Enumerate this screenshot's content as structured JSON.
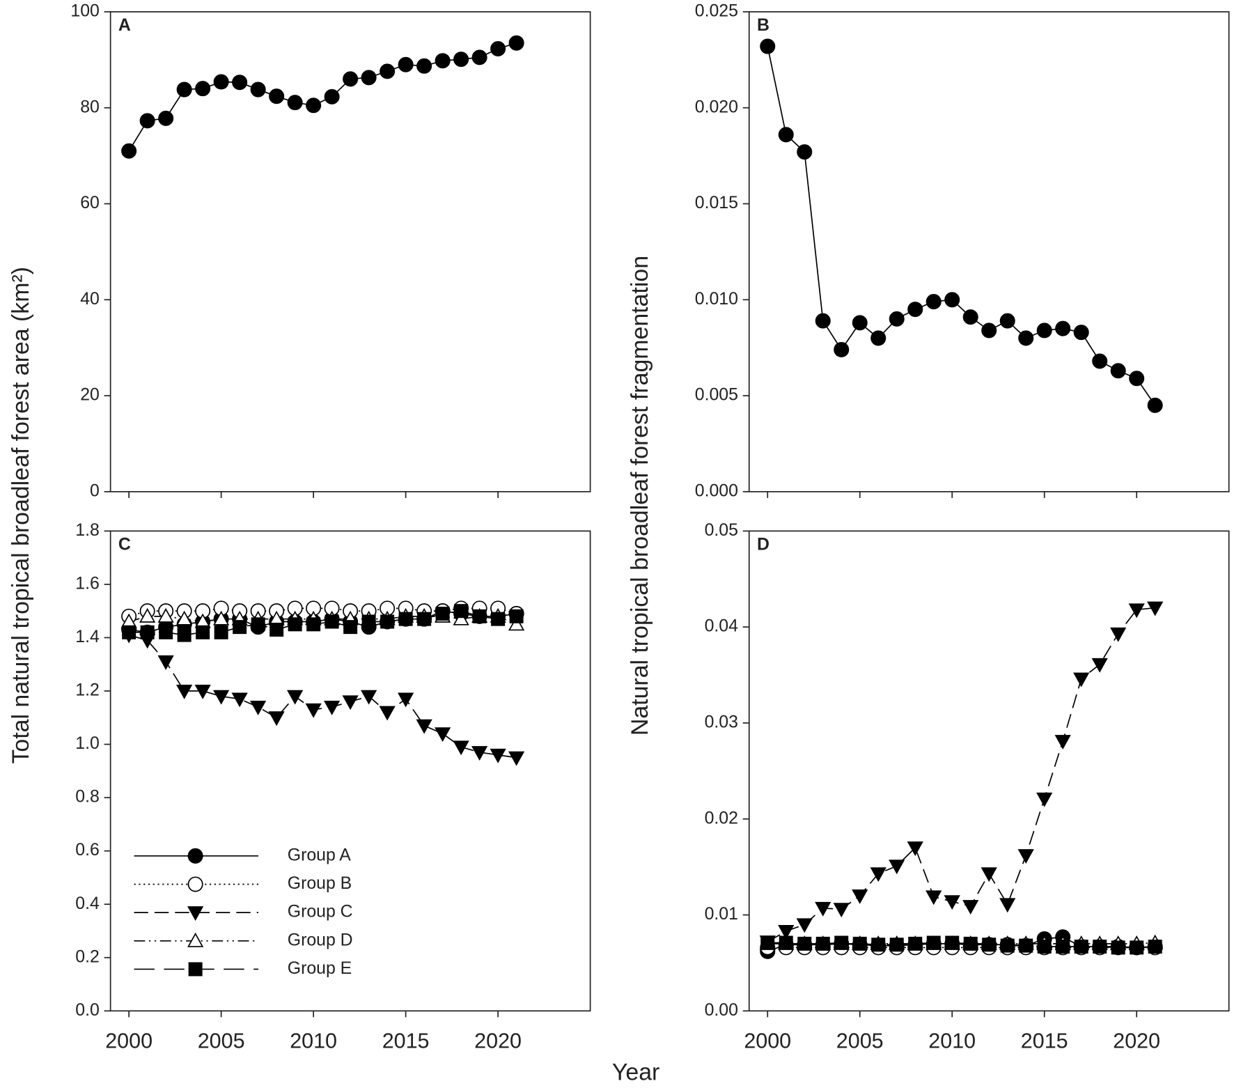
{
  "figure": {
    "xlabel": "Year"
  },
  "chart_data": [
    {
      "type": "line",
      "label": "A",
      "ylabel": "Total natural tropical broadleaf forest area (km²)",
      "x": [
        2000,
        2001,
        2002,
        2003,
        2004,
        2005,
        2006,
        2007,
        2008,
        2009,
        2010,
        2011,
        2012,
        2013,
        2014,
        2015,
        2016,
        2017,
        2018,
        2019,
        2020,
        2021
      ],
      "values": [
        71,
        77.3,
        77.8,
        83.8,
        84,
        85.4,
        85.3,
        83.8,
        82.4,
        81.1,
        80.5,
        82.3,
        86,
        86.3,
        87.6,
        89,
        88.7,
        89.8,
        90.1,
        90.5,
        92.3,
        93.5
      ],
      "marker": "circle",
      "filled": true,
      "color": "#000000",
      "xlim": [
        1999,
        2025
      ],
      "xticks": [
        2000,
        2005,
        2010,
        2015,
        2020
      ],
      "show_xtick_labels": false,
      "ylim": [
        0,
        100
      ],
      "yticks": [
        0,
        20,
        40,
        60,
        80,
        100
      ]
    },
    {
      "type": "line",
      "label": "B",
      "ylabel": "Natural tropical broadleaf forest fragmentation",
      "x": [
        2000,
        2001,
        2002,
        2003,
        2004,
        2005,
        2006,
        2007,
        2008,
        2009,
        2010,
        2011,
        2012,
        2013,
        2014,
        2015,
        2016,
        2017,
        2018,
        2019,
        2020,
        2021
      ],
      "values": [
        0.0232,
        0.0186,
        0.0177,
        0.0089,
        0.0074,
        0.0088,
        0.008,
        0.009,
        0.0095,
        0.0099,
        0.01,
        0.0091,
        0.0084,
        0.0089,
        0.008,
        0.0084,
        0.0085,
        0.0083,
        0.0068,
        0.0063,
        0.0059,
        0.0045
      ],
      "marker": "circle",
      "filled": true,
      "color": "#000000",
      "xlim": [
        1999,
        2025
      ],
      "xticks": [
        2000,
        2005,
        2010,
        2015,
        2020
      ],
      "show_xtick_labels": false,
      "ylim": [
        0,
        0.025
      ],
      "yticks": [
        {
          "value": 0,
          "label": "0.000"
        },
        0.005,
        {
          "value": 0.01,
          "label": "0.010"
        },
        0.015,
        {
          "value": 0.02,
          "label": "0.020"
        },
        0.025
      ]
    },
    {
      "type": "line",
      "label": "C",
      "legend": "lower left",
      "x": [
        2000,
        2001,
        2002,
        2003,
        2004,
        2005,
        2006,
        2007,
        2008,
        2009,
        2010,
        2011,
        2012,
        2013,
        2014,
        2015,
        2016,
        2017,
        2018,
        2019,
        2020,
        2021
      ],
      "series": [
        {
          "name": "Group A",
          "color": "#000000",
          "marker": "circle",
          "filled": true,
          "dash": "none",
          "values": [
            1.43,
            1.42,
            1.44,
            1.45,
            1.46,
            1.47,
            1.47,
            1.44,
            1.46,
            1.46,
            1.46,
            1.47,
            1.46,
            1.44,
            1.46,
            1.47,
            1.47,
            1.5,
            1.49,
            1.48,
            1.48,
            1.49
          ]
        },
        {
          "name": "Group B",
          "color": "#000000",
          "marker": "circle",
          "filled": false,
          "dash": "2,4",
          "values": [
            1.48,
            1.5,
            1.5,
            1.5,
            1.5,
            1.51,
            1.5,
            1.5,
            1.5,
            1.51,
            1.51,
            1.51,
            1.5,
            1.5,
            1.51,
            1.51,
            1.5,
            1.5,
            1.51,
            1.51,
            1.51,
            1.49
          ]
        },
        {
          "name": "Group C",
          "color": "#000000",
          "marker": "triangle-down",
          "filled": true,
          "dash": "18,8",
          "values": [
            1.41,
            1.39,
            1.31,
            1.2,
            1.2,
            1.18,
            1.17,
            1.14,
            1.1,
            1.18,
            1.13,
            1.14,
            1.16,
            1.18,
            1.12,
            1.17,
            1.07,
            1.04,
            0.99,
            0.97,
            0.96,
            0.95
          ]
        },
        {
          "name": "Group D",
          "color": "#000000",
          "marker": "triangle-up",
          "filled": false,
          "dash": "14,5,2,5,2,5",
          "values": [
            1.46,
            1.48,
            1.48,
            1.47,
            1.46,
            1.47,
            1.47,
            1.47,
            1.47,
            1.47,
            1.47,
            1.47,
            1.47,
            1.47,
            1.47,
            1.48,
            1.48,
            1.48,
            1.47,
            1.48,
            1.48,
            1.45
          ]
        },
        {
          "name": "Group E",
          "color": "#000000",
          "marker": "square",
          "filled": true,
          "dash": "26,12",
          "values": [
            1.42,
            1.42,
            1.42,
            1.41,
            1.42,
            1.42,
            1.44,
            1.45,
            1.43,
            1.45,
            1.45,
            1.46,
            1.44,
            1.46,
            1.46,
            1.47,
            1.47,
            1.49,
            1.5,
            1.48,
            1.47,
            1.48
          ]
        }
      ],
      "xlim": [
        1999,
        2025
      ],
      "xticks": [
        2000,
        2005,
        2010,
        2015,
        2020
      ],
      "show_xtick_labels": true,
      "ylim": [
        0,
        1.8
      ],
      "yticks": [
        {
          "value": 0,
          "label": "0.0"
        },
        0.2,
        0.4,
        0.6,
        0.8,
        {
          "value": 1,
          "label": "1.0"
        },
        1.2,
        1.4,
        1.6,
        1.8
      ]
    },
    {
      "type": "line",
      "label": "D",
      "x": [
        2000,
        2001,
        2002,
        2003,
        2004,
        2005,
        2006,
        2007,
        2008,
        2009,
        2010,
        2011,
        2012,
        2013,
        2014,
        2015,
        2016,
        2017,
        2018,
        2019,
        2020,
        2021
      ],
      "series": [
        {
          "name": "Group A",
          "color": "#000000",
          "marker": "circle",
          "filled": true,
          "dash": "none",
          "values": [
            0.0062,
            0.0069,
            0.0069,
            0.0069,
            0.007,
            0.0069,
            0.0068,
            0.0068,
            0.0069,
            0.007,
            0.007,
            0.0069,
            0.0069,
            0.0069,
            0.0068,
            0.0075,
            0.0077,
            0.0067,
            0.0067,
            0.0067,
            0.0066,
            0.0067
          ]
        },
        {
          "name": "Group B",
          "color": "#000000",
          "marker": "circle",
          "filled": false,
          "dash": "2,4",
          "values": [
            0.0066,
            0.0066,
            0.0066,
            0.0066,
            0.0066,
            0.0066,
            0.0066,
            0.0066,
            0.0066,
            0.0066,
            0.0066,
            0.0066,
            0.0066,
            0.0066,
            0.0066,
            0.0066,
            0.0066,
            0.0066,
            0.0066,
            0.0066,
            0.0066,
            0.0066
          ]
        },
        {
          "name": "Group C",
          "color": "#000000",
          "marker": "triangle-down",
          "filled": true,
          "dash": "18,8",
          "values": [
            0.0072,
            0.0083,
            0.009,
            0.0107,
            0.0106,
            0.012,
            0.0143,
            0.0151,
            0.017,
            0.0119,
            0.0114,
            0.0109,
            0.0143,
            0.0111,
            0.0162,
            0.0221,
            0.0281,
            0.0346,
            0.0361,
            0.0393,
            0.0418,
            0.042
          ]
        },
        {
          "name": "Group D",
          "color": "#000000",
          "marker": "triangle-up",
          "filled": false,
          "dash": "14,5,2,5,2,5",
          "values": [
            0.007,
            0.007,
            0.007,
            0.007,
            0.007,
            0.007,
            0.007,
            0.007,
            0.007,
            0.007,
            0.007,
            0.007,
            0.007,
            0.007,
            0.007,
            0.007,
            0.007,
            0.007,
            0.007,
            0.007,
            0.007,
            0.0071
          ]
        },
        {
          "name": "Group E",
          "color": "#000000",
          "marker": "square",
          "filled": true,
          "dash": "26,12",
          "values": [
            0.0071,
            0.0071,
            0.007,
            0.007,
            0.0071,
            0.007,
            0.0069,
            0.0069,
            0.007,
            0.0071,
            0.0071,
            0.007,
            0.0069,
            0.0068,
            0.0068,
            0.0067,
            0.0067,
            0.0067,
            0.0067,
            0.0066,
            0.0066,
            0.0067
          ]
        }
      ],
      "xlim": [
        1999,
        2025
      ],
      "xticks": [
        2000,
        2005,
        2010,
        2015,
        2020
      ],
      "show_xtick_labels": true,
      "ylim": [
        0,
        0.05
      ],
      "yticks": [
        {
          "value": 0,
          "label": "0.00"
        },
        0.01,
        0.02,
        0.03,
        0.04,
        0.05
      ]
    }
  ]
}
